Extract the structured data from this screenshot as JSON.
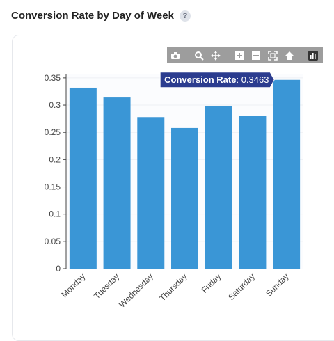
{
  "header": {
    "title": "Conversion Rate by Day of Week",
    "help": "?"
  },
  "toolbar": {
    "icons": [
      "camera-icon",
      "zoom-icon",
      "pan-icon",
      "zoom-in-icon",
      "zoom-out-icon",
      "autoscale-icon",
      "home-icon",
      "plotly-logo-icon"
    ]
  },
  "colors": {
    "bar": "#3a96d6",
    "tooltip_bg": "#2b3c8f",
    "grid": "#eef0f4",
    "axis": "#444444"
  },
  "tooltip": {
    "series": "Conversion Rate",
    "value": "0.3463"
  },
  "chart_data": {
    "type": "bar",
    "categories": [
      "Monday",
      "Tuesday",
      "Wednesday",
      "Thursday",
      "Friday",
      "Saturday",
      "Sunday"
    ],
    "series": [
      {
        "name": "Conversion Rate",
        "values": [
          0.332,
          0.314,
          0.278,
          0.258,
          0.298,
          0.28,
          0.3463
        ]
      }
    ],
    "yticks": [
      "0",
      "0.05",
      "0.1",
      "0.15",
      "0.2",
      "0.25",
      "0.3",
      "0.35"
    ],
    "ylim": [
      0,
      0.35
    ],
    "grid": true,
    "title": "",
    "xlabel": "",
    "ylabel": ""
  }
}
